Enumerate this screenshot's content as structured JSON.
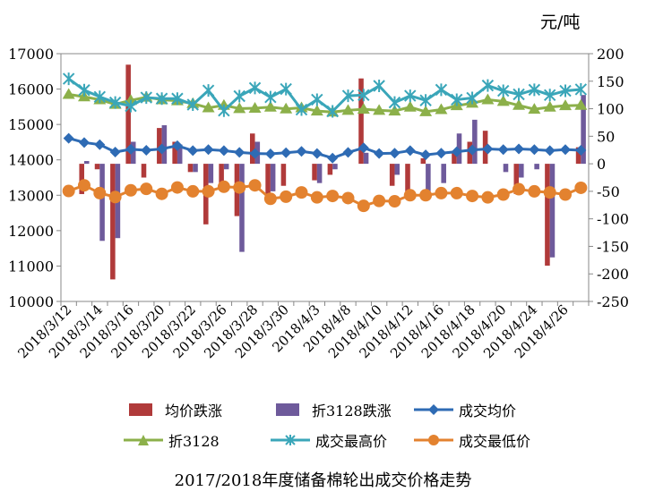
{
  "unit_label": "元/吨",
  "title": "2017/2018年度储备棉轮出成交价格走势",
  "legend": [
    {
      "label": "均价跌涨",
      "key": "avg_change"
    },
    {
      "label": "折3128跌涨",
      "key": "c3128_change"
    },
    {
      "label": "成交均价",
      "key": "avg"
    },
    {
      "label": "折3128",
      "key": "c3128"
    },
    {
      "label": "成交最高价",
      "key": "max"
    },
    {
      "label": "成交最低价",
      "key": "min"
    }
  ],
  "chart_data": {
    "type": "bar+line",
    "title": "2017/2018年度储备棉轮出成交价格走势",
    "y_left": {
      "label": "",
      "min": 10000,
      "max": 17000,
      "ticks": [
        10000,
        11000,
        12000,
        13000,
        14000,
        15000,
        16000,
        17000
      ]
    },
    "y_right": {
      "label": "元/吨",
      "min": -250,
      "max": 200,
      "ticks": [
        -250,
        -200,
        -150,
        -100,
        -50,
        0,
        50,
        100,
        150,
        200
      ]
    },
    "x_tick_labels": [
      "2018/3/12",
      "2018/3/14",
      "2018/3/16",
      "2018/3/20",
      "2018/3/22",
      "2018/3/26",
      "2018/3/28",
      "2018/3/30",
      "2018/4/3",
      "2018/4/8",
      "2018/4/10",
      "2018/4/12",
      "2018/4/16",
      "2018/4/18",
      "2018/4/20",
      "2018/4/24",
      "2018/4/26"
    ],
    "n_points": 34,
    "series": [
      {
        "name": "均价跌涨",
        "type": "bar",
        "axis": "right",
        "color": "#b03a3a",
        "values": [
          null,
          -55,
          -10,
          -210,
          180,
          -25,
          65,
          40,
          -15,
          -110,
          -40,
          -95,
          55,
          -65,
          -40,
          0,
          -30,
          -20,
          0,
          155,
          0,
          -40,
          -50,
          10,
          0,
          20,
          40,
          60,
          0,
          -55,
          0,
          -185,
          0,
          30
        ]
      },
      {
        "name": "折3128跌涨",
        "type": "bar",
        "axis": "right",
        "color": "#6e5a9b",
        "values": [
          null,
          5,
          -140,
          -135,
          40,
          0,
          70,
          35,
          -15,
          -35,
          -10,
          -160,
          40,
          -50,
          0,
          0,
          -35,
          -10,
          0,
          20,
          0,
          -20,
          0,
          -50,
          -35,
          55,
          80,
          0,
          -15,
          -25,
          -10,
          -170,
          0,
          125
        ]
      },
      {
        "name": "成交均价",
        "type": "line",
        "axis": "left",
        "color": "#2e6bb4",
        "values": [
          14610,
          14490,
          14430,
          14220,
          14300,
          14270,
          14310,
          14400,
          14260,
          14290,
          14260,
          14210,
          14180,
          14170,
          14200,
          14240,
          14180,
          14050,
          14210,
          14340,
          14180,
          14190,
          14260,
          14140,
          14190,
          14230,
          14280,
          14310,
          14290,
          14310,
          14290,
          14260,
          14290,
          14270
        ]
      },
      {
        "name": "折3128",
        "type": "line",
        "axis": "left",
        "color": "#8cb04a",
        "values": [
          15850,
          15780,
          15700,
          15570,
          15680,
          15770,
          15700,
          15670,
          15590,
          15470,
          15540,
          15450,
          15460,
          15490,
          15440,
          15470,
          15380,
          15350,
          15400,
          15430,
          15400,
          15380,
          15490,
          15360,
          15420,
          15530,
          15600,
          15700,
          15650,
          15540,
          15430,
          15490,
          15530,
          15540
        ]
      },
      {
        "name": "成交最高价",
        "type": "line",
        "axis": "left",
        "color": "#3aa6b9",
        "values": [
          16290,
          15970,
          15780,
          15620,
          15520,
          15760,
          15730,
          15730,
          15560,
          15960,
          15390,
          15800,
          16030,
          15770,
          16000,
          15420,
          15700,
          15370,
          15810,
          15830,
          16090,
          15620,
          15810,
          15680,
          15980,
          15700,
          15750,
          16100,
          15950,
          15850,
          15980,
          15830,
          15950,
          15990
        ]
      },
      {
        "name": "成交最低价",
        "type": "line",
        "axis": "left",
        "color": "#e3822f",
        "values": [
          13120,
          13280,
          13060,
          12950,
          13140,
          13180,
          13040,
          13220,
          13110,
          13110,
          13240,
          13220,
          13280,
          12900,
          12960,
          13080,
          12940,
          12980,
          12920,
          12700,
          12840,
          12830,
          13000,
          13000,
          13060,
          13060,
          12980,
          12940,
          13020,
          13170,
          13110,
          13080,
          13020,
          13210
        ]
      }
    ]
  }
}
